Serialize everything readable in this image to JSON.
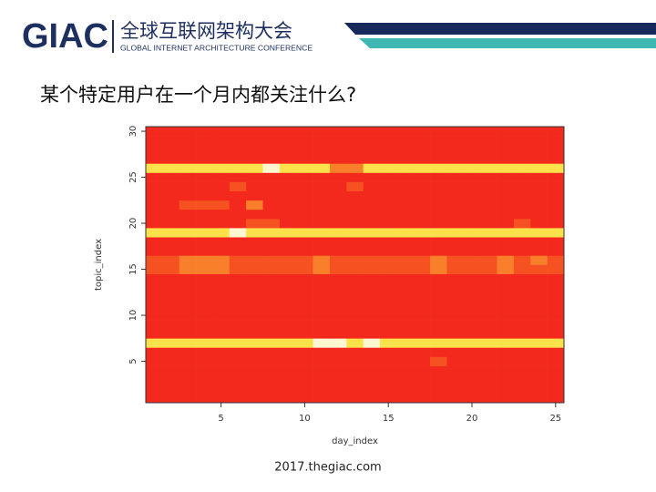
{
  "header": {
    "logo": "GIAC",
    "name_cn": "全球互联网架构大会",
    "name_en": "GLOBAL INTERNET ARCHITECTURE CONFERENCE"
  },
  "footer": "2017.thegiac.com",
  "chart_data": {
    "type": "heatmap",
    "title": "某个特定用户在一个月内都关注什么?",
    "x_label": "day_index",
    "y_label": "topic_index",
    "xlim": [
      0.5,
      25.5
    ],
    "ylim": [
      0.5,
      30.5
    ],
    "xticks": [
      5,
      10,
      15,
      20,
      25
    ],
    "yticks": [
      5,
      10,
      15,
      20,
      25,
      30
    ],
    "colors": [
      "#f2291c",
      "#f65121",
      "#f97f2b",
      "#fbe24b",
      "#fff6d2"
    ],
    "z": [
      [
        0,
        0,
        0,
        0,
        0,
        0,
        0,
        0,
        0,
        0,
        0,
        0,
        0,
        0,
        0,
        0,
        0,
        0,
        0,
        0,
        0,
        0,
        0,
        0,
        0
      ],
      [
        0,
        0,
        0,
        0,
        0,
        0,
        0,
        0,
        0,
        0,
        0,
        0,
        0,
        0,
        0,
        0,
        0,
        0,
        0,
        0,
        0,
        0,
        0,
        0,
        0
      ],
      [
        0,
        0,
        0,
        0,
        0,
        0,
        0,
        0,
        0,
        0,
        0,
        0,
        0,
        0,
        0,
        0,
        0,
        0,
        0,
        0,
        0,
        0,
        0,
        0,
        0
      ],
      [
        0,
        0,
        0,
        0,
        0,
        0,
        0,
        0,
        0,
        0,
        0,
        0,
        0,
        0,
        0,
        0,
        0,
        0,
        0,
        0,
        0,
        0,
        0,
        0,
        0
      ],
      [
        0,
        0,
        0,
        0,
        0,
        0,
        0,
        0,
        0,
        0,
        0,
        0,
        0,
        0,
        0,
        0,
        0,
        1,
        0,
        0,
        0,
        0,
        0,
        0,
        0
      ],
      [
        0,
        0,
        0,
        0,
        0,
        0,
        0,
        0,
        0,
        0,
        0,
        0,
        0,
        0,
        0,
        0,
        0,
        0,
        0,
        0,
        0,
        0,
        0,
        0,
        0
      ],
      [
        3,
        3,
        3,
        3,
        3,
        3,
        3,
        3,
        3,
        3,
        4,
        4,
        3,
        4,
        3,
        3,
        3,
        3,
        3,
        3,
        3,
        3,
        3,
        3,
        3
      ],
      [
        0,
        0,
        0,
        0,
        0,
        0,
        0,
        0,
        0,
        0,
        0,
        0,
        0,
        0,
        0,
        0,
        0,
        0,
        0,
        0,
        0,
        0,
        0,
        0,
        0
      ],
      [
        0,
        0,
        0,
        0,
        0,
        0,
        0,
        0,
        0,
        0,
        0,
        0,
        0,
        0,
        0,
        0,
        0,
        0,
        0,
        0,
        0,
        0,
        0,
        0,
        0
      ],
      [
        0,
        0,
        0,
        0,
        0,
        0,
        0,
        0,
        0,
        0,
        0,
        0,
        0,
        0,
        0,
        0,
        0,
        0,
        0,
        0,
        0,
        0,
        0,
        0,
        0
      ],
      [
        0,
        0,
        0,
        0,
        0,
        0,
        0,
        0,
        0,
        0,
        0,
        0,
        0,
        0,
        0,
        0,
        0,
        0,
        0,
        0,
        0,
        0,
        0,
        0,
        0
      ],
      [
        0,
        0,
        0,
        0,
        0,
        0,
        0,
        0,
        0,
        0,
        0,
        0,
        0,
        0,
        0,
        0,
        0,
        0,
        0,
        0,
        0,
        0,
        0,
        0,
        0
      ],
      [
        0,
        0,
        0,
        0,
        0,
        0,
        0,
        0,
        0,
        0,
        0,
        0,
        0,
        0,
        0,
        0,
        0,
        0,
        0,
        0,
        0,
        0,
        0,
        0,
        0
      ],
      [
        0,
        0,
        0,
        0,
        0,
        0,
        0,
        0,
        0,
        0,
        0,
        0,
        0,
        0,
        0,
        0,
        0,
        0,
        0,
        0,
        0,
        0,
        0,
        0,
        0
      ],
      [
        1,
        1,
        2,
        2,
        2,
        1,
        1,
        1,
        1,
        1,
        2,
        1,
        1,
        1,
        1,
        1,
        1,
        2,
        1,
        1,
        1,
        2,
        1,
        1,
        1
      ],
      [
        1,
        1,
        2,
        2,
        2,
        1,
        1,
        1,
        1,
        1,
        2,
        1,
        1,
        1,
        1,
        1,
        1,
        2,
        1,
        1,
        1,
        2,
        1,
        2,
        1
      ],
      [
        0,
        0,
        0,
        0,
        0,
        0,
        0,
        0,
        0,
        0,
        0,
        0,
        0,
        0,
        0,
        0,
        0,
        0,
        0,
        0,
        0,
        0,
        0,
        0,
        0
      ],
      [
        0,
        0,
        0,
        0,
        0,
        0,
        0,
        0,
        0,
        0,
        0,
        0,
        0,
        0,
        0,
        0,
        0,
        0,
        0,
        0,
        0,
        0,
        0,
        0,
        0
      ],
      [
        3,
        3,
        3,
        3,
        3,
        4,
        3,
        3,
        3,
        3,
        3,
        3,
        3,
        3,
        3,
        3,
        3,
        3,
        3,
        3,
        3,
        3,
        3,
        3,
        3
      ],
      [
        0,
        0,
        0,
        0,
        0,
        0,
        1,
        1,
        0,
        0,
        0,
        0,
        0,
        0,
        0,
        0,
        0,
        0,
        0,
        0,
        0,
        0,
        1,
        0,
        0
      ],
      [
        0,
        0,
        0,
        0,
        0,
        0,
        0,
        0,
        0,
        0,
        0,
        0,
        0,
        0,
        0,
        0,
        0,
        0,
        0,
        0,
        0,
        0,
        0,
        0,
        0
      ],
      [
        0,
        0,
        1,
        1,
        1,
        0,
        2,
        0,
        0,
        0,
        0,
        0,
        0,
        0,
        0,
        0,
        0,
        0,
        0,
        0,
        0,
        0,
        0,
        0,
        0
      ],
      [
        0,
        0,
        0,
        0,
        0,
        0,
        0,
        0,
        0,
        0,
        0,
        0,
        0,
        0,
        0,
        0,
        0,
        0,
        0,
        0,
        0,
        0,
        0,
        0,
        0
      ],
      [
        0,
        0,
        0,
        0,
        0,
        1,
        0,
        0,
        0,
        0,
        0,
        0,
        1,
        0,
        0,
        0,
        0,
        0,
        0,
        0,
        0,
        0,
        0,
        0,
        0
      ],
      [
        0,
        0,
        0,
        0,
        0,
        0,
        0,
        0,
        0,
        0,
        0,
        0,
        0,
        0,
        0,
        0,
        0,
        0,
        0,
        0,
        0,
        0,
        0,
        0,
        0
      ],
      [
        3,
        3,
        3,
        3,
        3,
        3,
        3,
        4,
        3,
        3,
        3,
        2,
        2,
        3,
        3,
        3,
        3,
        3,
        3,
        3,
        3,
        3,
        3,
        3,
        3
      ],
      [
        0,
        0,
        0,
        0,
        0,
        0,
        0,
        0,
        0,
        0,
        0,
        0,
        0,
        0,
        0,
        0,
        0,
        0,
        0,
        0,
        0,
        0,
        0,
        0,
        0
      ],
      [
        0,
        0,
        0,
        0,
        0,
        0,
        0,
        0,
        0,
        0,
        0,
        0,
        0,
        0,
        0,
        0,
        0,
        0,
        0,
        0,
        0,
        0,
        0,
        0,
        0
      ],
      [
        0,
        0,
        0,
        0,
        0,
        0,
        0,
        0,
        0,
        0,
        0,
        0,
        0,
        0,
        0,
        0,
        0,
        0,
        0,
        0,
        0,
        0,
        0,
        0,
        0
      ],
      [
        0,
        0,
        0,
        0,
        0,
        0,
        0,
        0,
        0,
        0,
        0,
        0,
        0,
        0,
        0,
        0,
        0,
        0,
        0,
        0,
        0,
        0,
        0,
        0,
        0
      ]
    ]
  }
}
